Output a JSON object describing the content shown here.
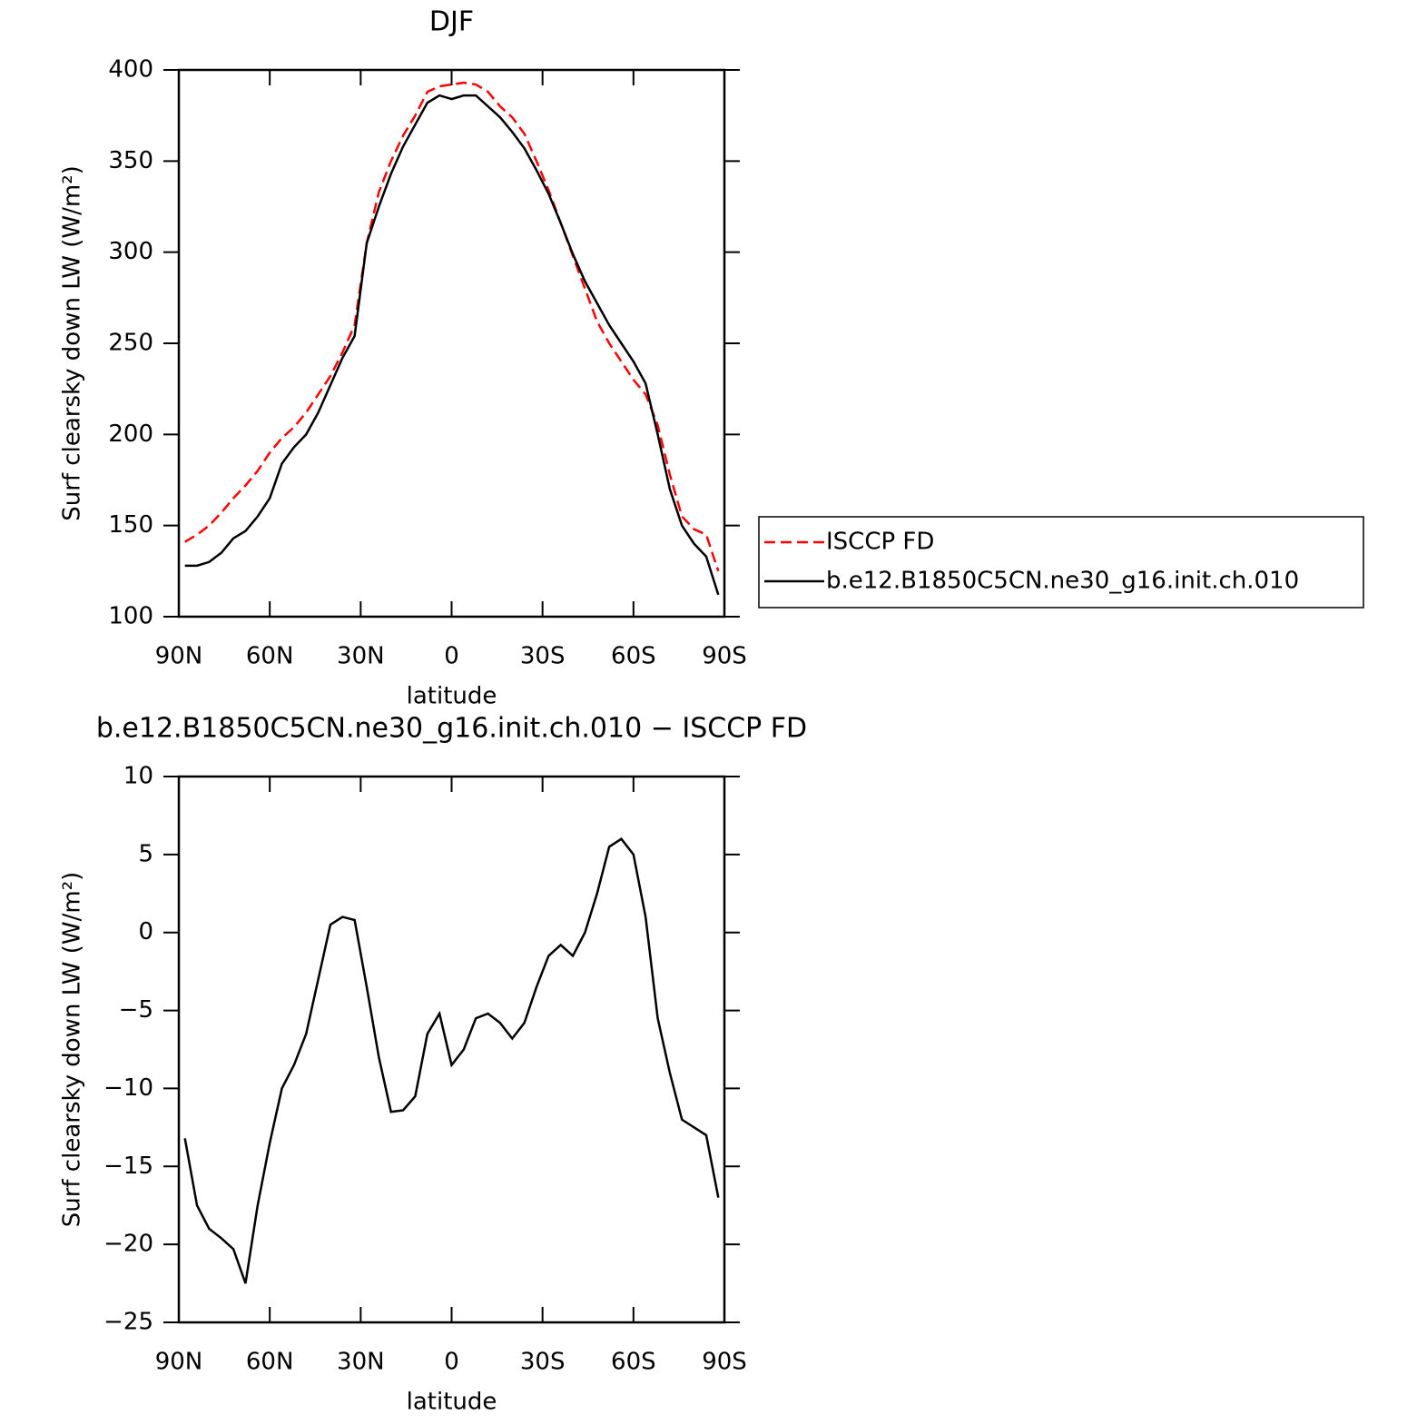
{
  "chart_data": [
    {
      "type": "line",
      "title": "DJF",
      "xlabel": "latitude",
      "ylabel": "Surf clearsky down LW (W/m²)",
      "x": [
        88,
        84,
        80,
        76,
        72,
        68,
        64,
        60,
        56,
        52,
        48,
        44,
        40,
        36,
        32,
        28,
        24,
        20,
        16,
        12,
        8,
        4,
        0,
        -4,
        -8,
        -12,
        -16,
        -20,
        -24,
        -28,
        -32,
        -36,
        -40,
        -44,
        -48,
        -52,
        -56,
        -60,
        -64,
        -68,
        -72,
        -76,
        -80,
        -84,
        -88
      ],
      "series": [
        {
          "name": "ISCCP FD",
          "color": "#ff0000",
          "linestyle": "dashed",
          "values": [
            141,
            145,
            150,
            157,
            165,
            172,
            180,
            190,
            198,
            204,
            212,
            222,
            232,
            245,
            260,
            305,
            333,
            350,
            364,
            375,
            388,
            391,
            392,
            393,
            392,
            388,
            380,
            374,
            365,
            350,
            334,
            316,
            298,
            280,
            262,
            250,
            240,
            230,
            222,
            205,
            178,
            155,
            148,
            145,
            125
          ]
        },
        {
          "name": "b.e12.B1850C5CN.ne30_g16.init.ch.010",
          "color": "#000000",
          "linestyle": "solid",
          "values": [
            128,
            128,
            130,
            135,
            143,
            147,
            155,
            165,
            184,
            193,
            200,
            212,
            227,
            242,
            254,
            305,
            325,
            343,
            358,
            370,
            382,
            386,
            384,
            386,
            386,
            380,
            374,
            366,
            357,
            345,
            332,
            316,
            299,
            284,
            272,
            260,
            250,
            240,
            228,
            200,
            170,
            150,
            140,
            133,
            112
          ]
        }
      ],
      "xlim": [
        90,
        -90
      ],
      "xticks": [
        {
          "value": 90,
          "label": "90N"
        },
        {
          "value": 60,
          "label": "60N"
        },
        {
          "value": 30,
          "label": "30N"
        },
        0,
        {
          "value": -30,
          "label": "30S"
        },
        {
          "value": -60,
          "label": "60S"
        },
        {
          "value": -90,
          "label": "90S"
        }
      ],
      "ylim": [
        100,
        400
      ],
      "yticks": [
        100,
        150,
        200,
        250,
        300,
        350,
        400
      ],
      "legend": "right"
    },
    {
      "type": "line",
      "title": "b.e12.B1850C5CN.ne30_g16.init.ch.010 − ISCCP FD",
      "xlabel": "latitude",
      "ylabel": "Surf clearsky down LW (W/m²)",
      "x": [
        88,
        84,
        80,
        76,
        72,
        68,
        64,
        60,
        56,
        52,
        48,
        44,
        40,
        36,
        32,
        28,
        24,
        20,
        16,
        12,
        8,
        4,
        0,
        -4,
        -8,
        -12,
        -16,
        -20,
        -24,
        -28,
        -32,
        -36,
        -40,
        -44,
        -48,
        -52,
        -56,
        -60,
        -64,
        -68,
        -72,
        -76,
        -80,
        -84,
        -88
      ],
      "series": [
        {
          "color": "#000000",
          "linestyle": "solid",
          "values": [
            -13.2,
            -17.5,
            -19,
            -19.6,
            -20.3,
            -22.5,
            -17.5,
            -13.5,
            -10,
            -8.5,
            -6.5,
            -3,
            0.5,
            1,
            0.8,
            -3.5,
            -8,
            -11.5,
            -11.4,
            -10.5,
            -6.5,
            -5.2,
            -8.5,
            -7.5,
            -5.5,
            -5.2,
            -5.8,
            -6.8,
            -5.8,
            -3.5,
            -1.5,
            -0.8,
            -1.5,
            0,
            2.5,
            5.5,
            6,
            5,
            1,
            -5.5,
            -9,
            -12,
            -12.5,
            -13,
            -17
          ]
        }
      ],
      "xlim": [
        90,
        -90
      ],
      "xticks": [
        {
          "value": 90,
          "label": "90N"
        },
        {
          "value": 60,
          "label": "60N"
        },
        {
          "value": 30,
          "label": "30N"
        },
        0,
        {
          "value": -30,
          "label": "30S"
        },
        {
          "value": -60,
          "label": "60S"
        },
        {
          "value": -90,
          "label": "90S"
        }
      ],
      "ylim": [
        -25,
        10
      ],
      "yticks": [
        {
          "value": -25,
          "label": "−25"
        },
        {
          "value": -20,
          "label": "−20"
        },
        {
          "value": -15,
          "label": "−15"
        },
        {
          "value": -10,
          "label": "−10"
        },
        {
          "value": -5,
          "label": "−5"
        },
        0,
        5,
        10
      ]
    }
  ]
}
